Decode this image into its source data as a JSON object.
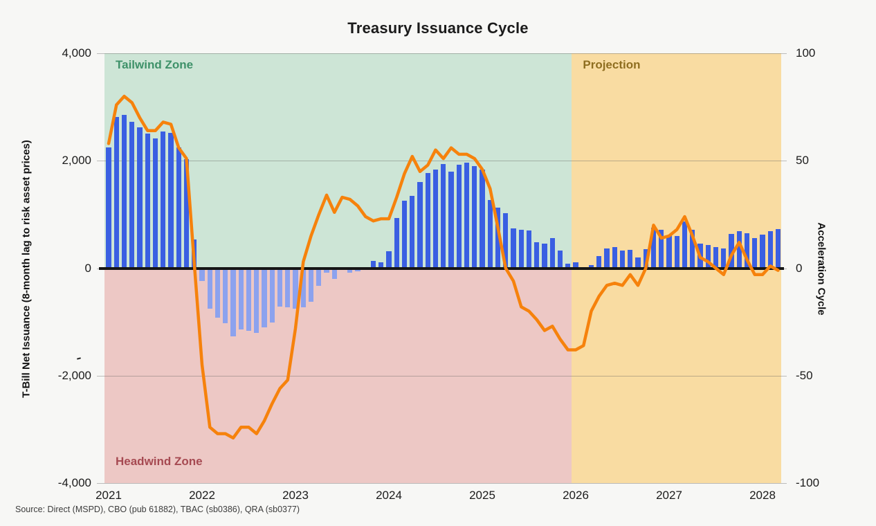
{
  "title": "Treasury Issuance Cycle",
  "left_axis": {
    "label": "T-Bill Net Issuance (8-month lag to risk asset prices)",
    "ticks": [
      "4,000",
      "2,000",
      "0",
      "-2,000",
      "-4,000"
    ]
  },
  "right_axis": {
    "label": "Acceleration Cycle",
    "ticks": [
      "100",
      "50",
      "0",
      "-50",
      "-100"
    ]
  },
  "x_axis": {
    "ticks": [
      "2021",
      "2022",
      "2023",
      "2024",
      "2025",
      "2026",
      "2027",
      "2028"
    ]
  },
  "zones": {
    "tailwind": {
      "label": "Tailwind Zone",
      "fill": "#cde5d6",
      "label_color": "#3e9169"
    },
    "headwind": {
      "label": "Headwind Zone",
      "fill": "#edc8c5",
      "label_color": "#a64a52"
    },
    "projection": {
      "label": "Projection",
      "fill": "#f9dca2",
      "label_color": "#8f6e20"
    }
  },
  "source": "Source: Direct (MSPD), CBO (pub 61882), TBAC (sb0386), QRA (sb0377)",
  "chart_data": {
    "type": "combo-bar-line",
    "title": "Treasury Issuance Cycle",
    "left_ylim": [
      -4000,
      4000
    ],
    "right_ylim": [
      -100,
      100
    ],
    "grid": "horizontal",
    "projection_start_month": "2026-01",
    "colors": {
      "bar_positive": "#3a5fe2",
      "bar_negative": "#8ca2ee",
      "line": "#f6820c",
      "zero_line": "#161616"
    },
    "categories": [
      "2021-01",
      "2021-02",
      "2021-03",
      "2021-04",
      "2021-05",
      "2021-06",
      "2021-07",
      "2021-08",
      "2021-09",
      "2021-10",
      "2021-11",
      "2021-12",
      "2022-01",
      "2022-02",
      "2022-03",
      "2022-04",
      "2022-05",
      "2022-06",
      "2022-07",
      "2022-08",
      "2022-09",
      "2022-10",
      "2022-11",
      "2022-12",
      "2023-01",
      "2023-02",
      "2023-03",
      "2023-04",
      "2023-05",
      "2023-06",
      "2023-07",
      "2023-08",
      "2023-09",
      "2023-10",
      "2023-11",
      "2023-12",
      "2024-01",
      "2024-02",
      "2024-03",
      "2024-04",
      "2024-05",
      "2024-06",
      "2024-07",
      "2024-08",
      "2024-09",
      "2024-10",
      "2024-11",
      "2024-12",
      "2025-01",
      "2025-02",
      "2025-03",
      "2025-04",
      "2025-05",
      "2025-06",
      "2025-07",
      "2025-08",
      "2025-09",
      "2025-10",
      "2025-11",
      "2025-12",
      "2026-01",
      "2026-02",
      "2026-03",
      "2026-04",
      "2026-05",
      "2026-06",
      "2026-07",
      "2026-08",
      "2026-09",
      "2026-10",
      "2026-11",
      "2026-12",
      "2027-01",
      "2027-02",
      "2027-03",
      "2027-04",
      "2027-05",
      "2027-06",
      "2027-07",
      "2027-08",
      "2027-09",
      "2027-10",
      "2027-11",
      "2027-12",
      "2028-01",
      "2028-02",
      "2028-03"
    ],
    "series": [
      {
        "name": "T-Bill Net Issuance",
        "type": "bar",
        "axis": "left",
        "values": [
          2250,
          2810,
          2850,
          2720,
          2620,
          2510,
          2410,
          2540,
          2520,
          2250,
          2030,
          540,
          -240,
          -750,
          -925,
          -1030,
          -1270,
          -1140,
          -1160,
          -1200,
          -1100,
          -1010,
          -710,
          -730,
          -750,
          -730,
          -625,
          -325,
          -85,
          -195,
          -20,
          -85,
          -60,
          20,
          130,
          105,
          315,
          930,
          1250,
          1340,
          1600,
          1775,
          1830,
          1940,
          1800,
          1920,
          1960,
          1895,
          1840,
          1270,
          1130,
          1020,
          740,
          710,
          700,
          480,
          460,
          560,
          330,
          90,
          110,
          0,
          60,
          230,
          370,
          390,
          330,
          340,
          200,
          360,
          750,
          710,
          615,
          595,
          875,
          720,
          455,
          430,
          395,
          370,
          635,
          690,
          645,
          560,
          620,
          695,
          730
        ]
      },
      {
        "name": "Acceleration Cycle",
        "type": "line",
        "axis": "right",
        "values": [
          58,
          76,
          80,
          77,
          70,
          64,
          64,
          68,
          67,
          56,
          51,
          2,
          -45,
          -74,
          -77,
          -77,
          -79,
          -74,
          -74,
          -77,
          -71,
          -63,
          -56,
          -52,
          -28,
          3,
          15,
          25,
          34,
          26,
          33,
          32,
          29,
          24,
          22,
          23,
          23,
          33,
          44,
          52,
          45,
          48,
          55,
          51,
          56,
          53,
          53,
          51,
          46,
          37,
          19,
          0,
          -6,
          -18,
          -20,
          -24,
          -29,
          -27,
          -33,
          -38,
          -38,
          -36,
          -20,
          -13,
          -8,
          -7,
          -8,
          -3,
          -8,
          0,
          20,
          14,
          15,
          18,
          24,
          15,
          5,
          3,
          0,
          -3,
          6,
          12,
          4,
          -3,
          -3,
          1,
          -1
        ]
      }
    ]
  }
}
